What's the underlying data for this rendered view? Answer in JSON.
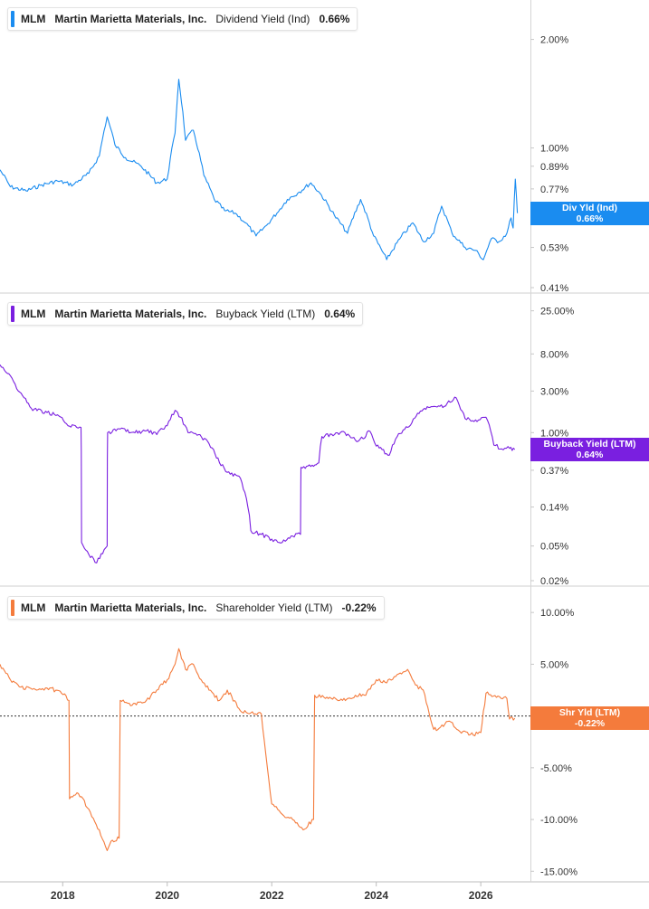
{
  "chart_data": [
    {
      "type": "line",
      "ticker": "MLM",
      "company": "Martin Marietta Materials, Inc.",
      "metric": "Dividend Yield (Ind)",
      "current_value": "0.66%",
      "badge_label": "Div Yld (Ind)",
      "badge_value": "0.66%",
      "color": "#1a8cf0",
      "scale": "log",
      "ylim": [
        0.41,
        2.4
      ],
      "yticks": [
        2.0,
        1.0,
        0.89,
        0.77,
        0.53,
        0.41
      ],
      "ytick_labels": [
        "2.00%",
        "1.00%",
        "0.89%",
        "0.77%",
        "0.53%",
        "0.41%"
      ],
      "series": [
        {
          "x": [
            2016.8,
            2017.0,
            2017.3,
            2017.6,
            2017.9,
            2018.2,
            2018.5,
            2018.7,
            2018.85,
            2019.0,
            2019.2,
            2019.5,
            2019.8,
            2020.0,
            2020.15,
            2020.22,
            2020.35,
            2020.5,
            2020.7,
            2020.9,
            2021.1,
            2021.3,
            2021.5,
            2021.7,
            2021.9,
            2022.1,
            2022.3,
            2022.5,
            2022.75,
            2022.95,
            2023.2,
            2023.45,
            2023.7,
            2023.95,
            2024.2,
            2024.45,
            2024.7,
            2024.9,
            2025.1,
            2025.25,
            2025.45,
            2025.7,
            2025.9,
            2026.05,
            2026.2,
            2026.35,
            2026.5,
            2026.58,
            2026.62,
            2026.66,
            2026.7
          ],
          "y": [
            0.87,
            0.78,
            0.76,
            0.79,
            0.81,
            0.79,
            0.85,
            0.95,
            1.22,
            1.02,
            0.94,
            0.89,
            0.8,
            0.82,
            1.1,
            1.55,
            1.05,
            1.12,
            0.84,
            0.72,
            0.67,
            0.66,
            0.62,
            0.57,
            0.61,
            0.66,
            0.72,
            0.75,
            0.8,
            0.74,
            0.65,
            0.58,
            0.72,
            0.57,
            0.49,
            0.56,
            0.62,
            0.55,
            0.58,
            0.69,
            0.58,
            0.53,
            0.52,
            0.49,
            0.56,
            0.55,
            0.58,
            0.64,
            0.6,
            0.82,
            0.66
          ]
        }
      ]
    },
    {
      "type": "line",
      "ticker": "MLM",
      "company": "Martin Marietta Materials, Inc.",
      "metric": "Buyback Yield (LTM)",
      "current_value": "0.64%",
      "badge_label": "Buyback Yield (LTM)",
      "badge_value": "0.64%",
      "color": "#7a1fe0",
      "scale": "log",
      "ylim": [
        0.02,
        30
      ],
      "yticks": [
        25.0,
        8.0,
        3.0,
        1.0,
        0.37,
        0.14,
        0.05,
        0.02
      ],
      "ytick_labels": [
        "25.00%",
        "8.00%",
        "3.00%",
        "1.00%",
        "0.37%",
        "0.14%",
        "0.05%",
        "0.02%"
      ],
      "series": [
        {
          "x": [
            2016.8,
            2017.0,
            2017.15,
            2017.4,
            2017.7,
            2017.9,
            2018.1,
            2018.35,
            2018.36,
            2018.5,
            2018.65,
            2018.85,
            2018.86,
            2019.1,
            2019.3,
            2019.6,
            2019.8,
            2020.0,
            2020.15,
            2020.25,
            2020.4,
            2020.6,
            2020.8,
            2021.0,
            2021.15,
            2021.4,
            2021.6,
            2021.8,
            2022.0,
            2022.2,
            2022.4,
            2022.55,
            2022.56,
            2022.8,
            2022.9,
            2022.96,
            2023.2,
            2023.4,
            2023.6,
            2023.75,
            2023.85,
            2024.0,
            2024.25,
            2024.4,
            2024.6,
            2024.9,
            2025.0,
            2025.3,
            2025.5,
            2025.7,
            2025.9,
            2026.1,
            2026.25,
            2026.4,
            2026.55,
            2026.65
          ],
          "y": [
            6.0,
            4.5,
            3.0,
            1.9,
            1.7,
            1.6,
            1.2,
            1.15,
            0.055,
            0.04,
            0.032,
            0.05,
            1.0,
            1.1,
            1.0,
            1.05,
            0.95,
            1.2,
            1.8,
            1.5,
            1.0,
            0.95,
            0.75,
            0.45,
            0.35,
            0.3,
            0.075,
            0.068,
            0.06,
            0.055,
            0.065,
            0.068,
            0.4,
            0.41,
            0.45,
            0.9,
            0.95,
            1.0,
            0.82,
            0.85,
            1.05,
            0.7,
            0.55,
            0.9,
            1.15,
            1.85,
            1.95,
            2.0,
            2.55,
            1.45,
            1.4,
            1.5,
            0.72,
            0.65,
            0.66,
            0.64
          ]
        }
      ]
    },
    {
      "type": "line",
      "ticker": "MLM",
      "company": "Martin Marietta Materials, Inc.",
      "metric": "Shareholder Yield (LTM)",
      "current_value": "-0.22%",
      "badge_label": "Shr Yld (LTM)",
      "badge_value": "-0.22%",
      "color": "#f47b3c",
      "scale": "linear",
      "ylim": [
        -15.5,
        11.5
      ],
      "yticks": [
        10,
        5,
        0,
        -5,
        -10,
        -15
      ],
      "ytick_labels": [
        "10.00%",
        "5.00%",
        "0.00%",
        "-5.00%",
        "-10.00%",
        "-15.00%"
      ],
      "zero_line": true,
      "series": [
        {
          "x": [
            2016.8,
            2017.0,
            2017.2,
            2017.5,
            2017.7,
            2017.95,
            2018.12,
            2018.13,
            2018.3,
            2018.5,
            2018.7,
            2018.85,
            2018.95,
            2019.08,
            2019.1,
            2019.3,
            2019.6,
            2019.8,
            2020.0,
            2020.15,
            2020.22,
            2020.35,
            2020.5,
            2020.65,
            2020.8,
            2021.0,
            2021.15,
            2021.4,
            2021.6,
            2021.8,
            2022.0,
            2022.2,
            2022.4,
            2022.6,
            2022.8,
            2022.82,
            2023.0,
            2023.3,
            2023.6,
            2023.8,
            2024.0,
            2024.2,
            2024.4,
            2024.6,
            2024.75,
            2024.9,
            2025.1,
            2025.2,
            2025.4,
            2025.6,
            2025.8,
            2026.0,
            2026.1,
            2026.3,
            2026.5,
            2026.55,
            2026.65
          ],
          "y": [
            5.0,
            3.5,
            2.8,
            2.5,
            2.7,
            2.4,
            1.5,
            -8.0,
            -7.5,
            -9.0,
            -11.0,
            -13.0,
            -12.0,
            -11.8,
            1.5,
            1.0,
            1.5,
            2.5,
            3.5,
            5.0,
            6.5,
            4.5,
            5.0,
            3.5,
            2.5,
            1.5,
            2.5,
            0.5,
            0.3,
            0.2,
            -8.5,
            -9.5,
            -10.0,
            -11.0,
            -10.0,
            2.0,
            1.8,
            1.5,
            2.0,
            2.0,
            3.5,
            3.2,
            4.0,
            4.5,
            3.0,
            2.5,
            -1.3,
            -1.2,
            -0.5,
            -1.5,
            -1.8,
            -1.6,
            2.2,
            1.8,
            1.7,
            -0.3,
            -0.22
          ]
        }
      ]
    }
  ],
  "x_axis": {
    "range": [
      2016.8,
      2026.95
    ],
    "ticks": [
      2018,
      2020,
      2022,
      2024,
      2026
    ],
    "tick_labels": [
      "2018",
      "2020",
      "2022",
      "2024",
      "2026"
    ]
  }
}
